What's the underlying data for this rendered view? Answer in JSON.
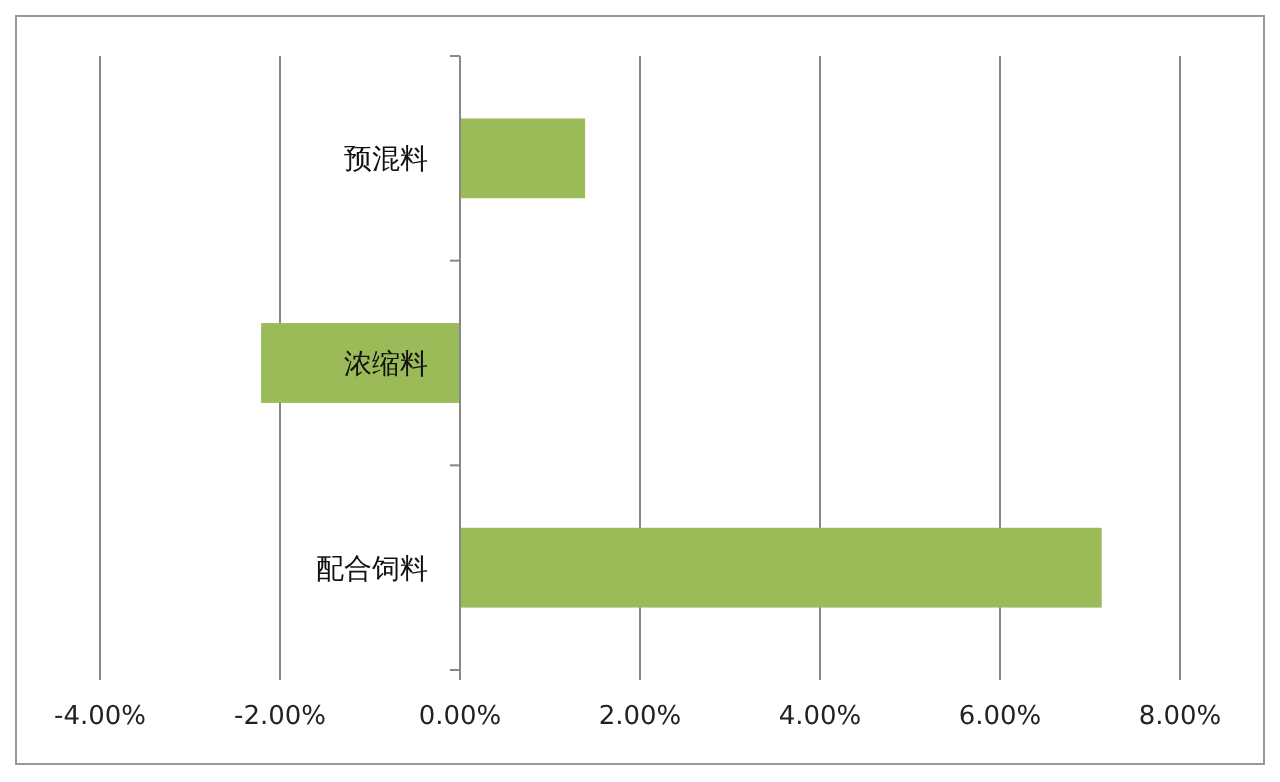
{
  "chart_data": {
    "type": "bar",
    "orientation": "horizontal",
    "categories": [
      "预混料",
      "浓缩料",
      "配合饲料"
    ],
    "values": [
      1.39,
      -2.21,
      7.13
    ],
    "color": "#9bbb59",
    "xlim": [
      -4,
      8
    ],
    "xticks": [
      {
        "value": -4,
        "label": "-4.00%"
      },
      {
        "value": -2,
        "label": "-2.00%"
      },
      {
        "value": 0,
        "label": "0.00%"
      },
      {
        "value": 2,
        "label": "2.00%"
      },
      {
        "value": 4,
        "label": "4.00%"
      },
      {
        "value": 6,
        "label": "6.00%"
      },
      {
        "value": 8,
        "label": "8.00%"
      }
    ],
    "grid": "x"
  }
}
